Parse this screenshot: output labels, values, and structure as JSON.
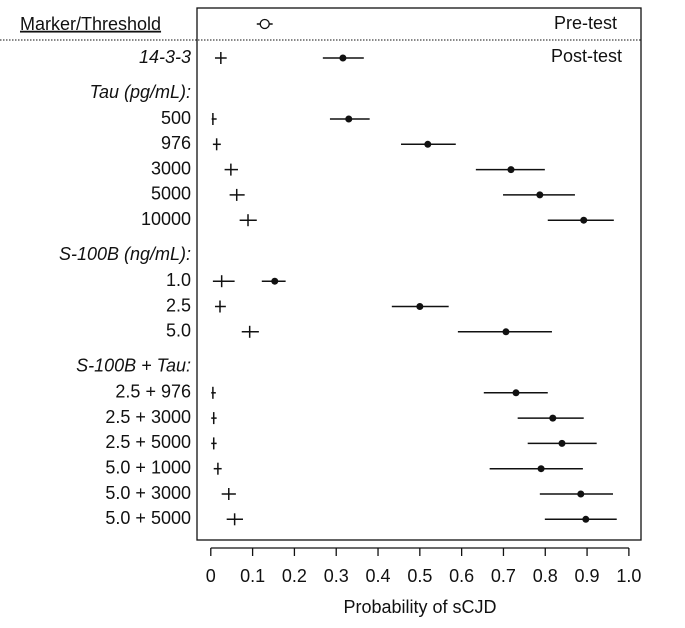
{
  "chart_data": {
    "type": "forest",
    "header_label": "Marker/Threshold",
    "pretest": {
      "name": "Pre-test",
      "value": 0.129,
      "lower": 0.11,
      "upper": 0.148
    },
    "posttest_label": "Post-test",
    "xlabel": "Probability of sCJD",
    "xlim": [
      -0.033,
      1.029
    ],
    "xticks": [
      0,
      0.1,
      0.2,
      0.3,
      0.4,
      0.5,
      0.6,
      0.7,
      0.8,
      0.9,
      {
        "value": 1,
        "label": "1.0"
      }
    ],
    "rows": [
      {
        "label": "14-3-3",
        "italic": true,
        "negative": {
          "value": 0.024,
          "lower": 0.01,
          "upper": 0.038
        },
        "positive": {
          "value": 0.316,
          "lower": 0.268,
          "upper": 0.366
        }
      },
      {
        "label": "Tau (pg/mL):",
        "italic": true
      },
      {
        "label": "500",
        "negative": {
          "value": 0.005,
          "lower": 0.002,
          "upper": 0.014
        },
        "positive": {
          "value": 0.33,
          "lower": 0.285,
          "upper": 0.38
        }
      },
      {
        "label": "976",
        "negative": {
          "value": 0.014,
          "lower": 0.005,
          "upper": 0.024
        },
        "positive": {
          "value": 0.519,
          "lower": 0.455,
          "upper": 0.586
        }
      },
      {
        "label": "3000",
        "negative": {
          "value": 0.048,
          "lower": 0.033,
          "upper": 0.065
        },
        "positive": {
          "value": 0.718,
          "lower": 0.634,
          "upper": 0.799
        }
      },
      {
        "label": "5000",
        "negative": {
          "value": 0.062,
          "lower": 0.045,
          "upper": 0.081
        },
        "positive": {
          "value": 0.787,
          "lower": 0.699,
          "upper": 0.871
        }
      },
      {
        "label": "10000",
        "negative": {
          "value": 0.089,
          "lower": 0.069,
          "upper": 0.11
        },
        "positive": {
          "value": 0.892,
          "lower": 0.806,
          "upper": 0.964
        }
      },
      {
        "label": "S-100B (ng/mL):",
        "italic": true
      },
      {
        "label": "1.0",
        "negative": {
          "value": 0.026,
          "lower": 0.005,
          "upper": 0.057
        },
        "positive": {
          "value": 0.153,
          "lower": 0.122,
          "upper": 0.179
        }
      },
      {
        "label": "2.5",
        "negative": {
          "value": 0.022,
          "lower": 0.01,
          "upper": 0.036
        },
        "positive": {
          "value": 0.5,
          "lower": 0.433,
          "upper": 0.569
        }
      },
      {
        "label": "5.0",
        "negative": {
          "value": 0.093,
          "lower": 0.074,
          "upper": 0.115
        },
        "positive": {
          "value": 0.706,
          "lower": 0.591,
          "upper": 0.816
        }
      },
      {
        "label": "S-100B + Tau:",
        "italic": true
      },
      {
        "label": "2.5 + 976",
        "negative": {
          "value": 0.005,
          "lower": 0.001,
          "upper": 0.012
        },
        "positive": {
          "value": 0.73,
          "lower": 0.653,
          "upper": 0.806
        }
      },
      {
        "label": "2.5 + 3000",
        "negative": {
          "value": 0.007,
          "lower": 0.001,
          "upper": 0.014
        },
        "positive": {
          "value": 0.818,
          "lower": 0.734,
          "upper": 0.892
        }
      },
      {
        "label": "2.5 + 5000",
        "negative": {
          "value": 0.007,
          "lower": 0.001,
          "upper": 0.014
        },
        "positive": {
          "value": 0.84,
          "lower": 0.758,
          "upper": 0.923
        }
      },
      {
        "label": "5.0 + 1000",
        "negative": {
          "value": 0.017,
          "lower": 0.007,
          "upper": 0.026
        },
        "positive": {
          "value": 0.79,
          "lower": 0.667,
          "upper": 0.89
        }
      },
      {
        "label": "5.0 + 3000",
        "negative": {
          "value": 0.043,
          "lower": 0.026,
          "upper": 0.06
        },
        "positive": {
          "value": 0.885,
          "lower": 0.787,
          "upper": 0.962
        }
      },
      {
        "label": "5.0 + 5000",
        "negative": {
          "value": 0.057,
          "lower": 0.038,
          "upper": 0.077
        },
        "positive": {
          "value": 0.897,
          "lower": 0.799,
          "upper": 0.971
        }
      }
    ]
  }
}
